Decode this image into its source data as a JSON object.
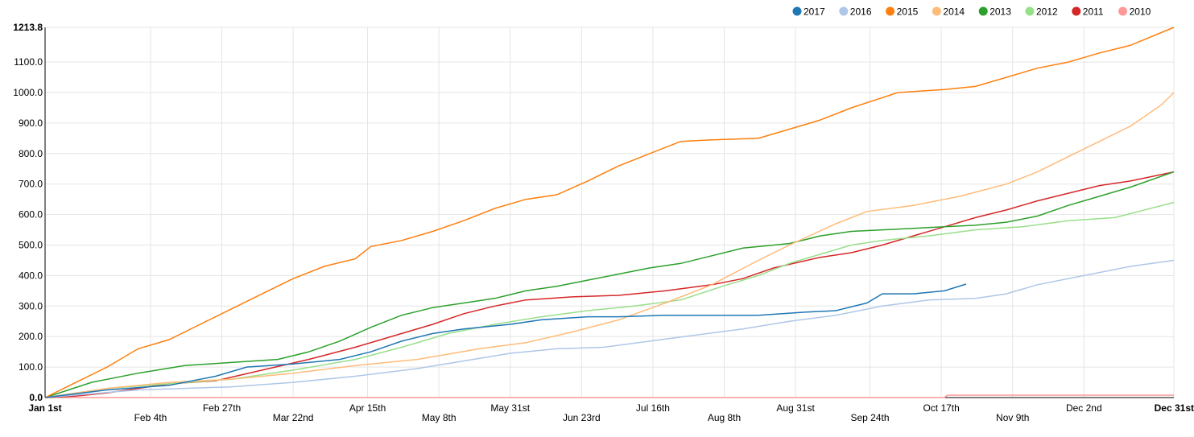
{
  "chart_data": {
    "type": "line",
    "title": "",
    "xlabel": "",
    "ylabel": "",
    "x_domain": [
      "Jan 1st",
      "Dec 31st"
    ],
    "ylim": [
      0,
      1213.8
    ],
    "y_ticks": [
      0,
      100,
      200,
      300,
      400,
      500,
      600,
      700,
      800,
      900,
      1000,
      1100,
      1213.8
    ],
    "y_tick_labels": [
      "0.0",
      "100.0",
      "200.0",
      "300.0",
      "400.0",
      "500.0",
      "600.0",
      "700.0",
      "800.0",
      "900.0",
      "1000.0",
      "1100.0",
      "1213.8"
    ],
    "x_ticks": [
      {
        "day": 0,
        "label": "Jan 1st"
      },
      {
        "day": 34,
        "label": "Feb 4th"
      },
      {
        "day": 57,
        "label": "Feb 27th"
      },
      {
        "day": 80,
        "label": "Mar 22nd"
      },
      {
        "day": 104,
        "label": "Apr 15th"
      },
      {
        "day": 127,
        "label": "May 8th"
      },
      {
        "day": 150,
        "label": "May 31st"
      },
      {
        "day": 173,
        "label": "Jun 23rd"
      },
      {
        "day": 196,
        "label": "Jul 16th"
      },
      {
        "day": 219,
        "label": "Aug 8th"
      },
      {
        "day": 242,
        "label": "Aug 31st"
      },
      {
        "day": 266,
        "label": "Sep 24th"
      },
      {
        "day": 289,
        "label": "Oct 17th"
      },
      {
        "day": 312,
        "label": "Nov 9th"
      },
      {
        "day": 335,
        "label": "Dec 2nd"
      },
      {
        "day": 364,
        "label": "Dec 31st"
      }
    ],
    "grid": true,
    "legend_position": "top-right",
    "series": [
      {
        "name": "2017",
        "color": "#1f77b4",
        "x": [
          0,
          20,
          40,
          55,
          65,
          80,
          95,
          105,
          115,
          125,
          135,
          150,
          160,
          175,
          185,
          200,
          215,
          230,
          245,
          255,
          265,
          270,
          280,
          290,
          297
        ],
        "y": [
          0,
          25,
          40,
          70,
          100,
          110,
          125,
          150,
          185,
          210,
          225,
          240,
          255,
          265,
          265,
          270,
          270,
          270,
          280,
          285,
          310,
          340,
          340,
          350,
          372
        ]
      },
      {
        "name": "2016",
        "color": "#aec7e8",
        "x": [
          0,
          30,
          60,
          80,
          100,
          120,
          135,
          150,
          165,
          180,
          195,
          210,
          225,
          240,
          255,
          270,
          285,
          300,
          310,
          320,
          335,
          350,
          364
        ],
        "y": [
          0,
          25,
          35,
          50,
          70,
          95,
          120,
          145,
          160,
          165,
          185,
          205,
          225,
          250,
          270,
          300,
          320,
          325,
          340,
          370,
          400,
          430,
          450
        ]
      },
      {
        "name": "2015",
        "color": "#ff7f0e",
        "x": [
          0,
          10,
          20,
          30,
          40,
          50,
          60,
          70,
          80,
          90,
          100,
          105,
          115,
          125,
          135,
          145,
          155,
          165,
          175,
          185,
          195,
          205,
          215,
          230,
          240,
          250,
          260,
          275,
          290,
          300,
          310,
          320,
          330,
          340,
          350,
          364
        ],
        "y": [
          0,
          50,
          100,
          160,
          190,
          240,
          290,
          340,
          390,
          430,
          455,
          495,
          515,
          545,
          580,
          620,
          650,
          665,
          710,
          760,
          800,
          840,
          845,
          850,
          880,
          910,
          950,
          1000,
          1010,
          1020,
          1050,
          1080,
          1100,
          1130,
          1155,
          1213.8
        ]
      },
      {
        "name": "2014",
        "color": "#ffbb78",
        "x": [
          0,
          20,
          40,
          60,
          80,
          100,
          120,
          140,
          155,
          170,
          185,
          200,
          215,
          230,
          240,
          255,
          265,
          280,
          295,
          310,
          320,
          330,
          340,
          350,
          360,
          364
        ],
        "y": [
          0,
          30,
          50,
          60,
          80,
          105,
          125,
          160,
          180,
          215,
          255,
          310,
          370,
          450,
          500,
          570,
          610,
          630,
          660,
          700,
          740,
          790,
          840,
          890,
          960,
          1000
        ]
      },
      {
        "name": "2013",
        "color": "#2ca02c",
        "x": [
          0,
          15,
          30,
          45,
          60,
          75,
          85,
          95,
          105,
          115,
          125,
          135,
          145,
          155,
          165,
          175,
          185,
          195,
          205,
          215,
          225,
          240,
          250,
          260,
          270,
          280,
          290,
          300,
          310,
          320,
          330,
          340,
          350,
          364
        ],
        "y": [
          0,
          50,
          80,
          105,
          115,
          125,
          150,
          185,
          230,
          270,
          295,
          310,
          325,
          350,
          365,
          385,
          405,
          425,
          440,
          465,
          490,
          505,
          530,
          545,
          550,
          555,
          560,
          565,
          575,
          595,
          630,
          660,
          690,
          740
        ]
      },
      {
        "name": "2012",
        "color": "#98df8a",
        "x": [
          0,
          20,
          40,
          60,
          80,
          100,
          115,
          130,
          145,
          160,
          175,
          190,
          205,
          220,
          230,
          240,
          250,
          260,
          270,
          285,
          300,
          315,
          330,
          345,
          364
        ],
        "y": [
          0,
          30,
          45,
          60,
          90,
          125,
          165,
          210,
          240,
          265,
          285,
          300,
          320,
          370,
          400,
          440,
          470,
          500,
          515,
          530,
          550,
          560,
          580,
          590,
          640
        ]
      },
      {
        "name": "2011",
        "color": "#d62728",
        "x": [
          0,
          10,
          20,
          30,
          40,
          55,
          70,
          85,
          100,
          115,
          125,
          135,
          145,
          155,
          170,
          185,
          200,
          215,
          225,
          235,
          250,
          260,
          270,
          280,
          290,
          300,
          310,
          320,
          330,
          340,
          350,
          364
        ],
        "y": [
          0,
          5,
          15,
          30,
          45,
          55,
          90,
          125,
          165,
          210,
          240,
          275,
          300,
          320,
          330,
          335,
          350,
          370,
          390,
          425,
          460,
          475,
          500,
          530,
          560,
          590,
          615,
          645,
          670,
          695,
          710,
          740
        ]
      },
      {
        "name": "2010",
        "color": "#ff9896",
        "x": [
          0,
          290,
          291,
          364
        ],
        "y": [
          0,
          0,
          8,
          8
        ]
      }
    ]
  }
}
